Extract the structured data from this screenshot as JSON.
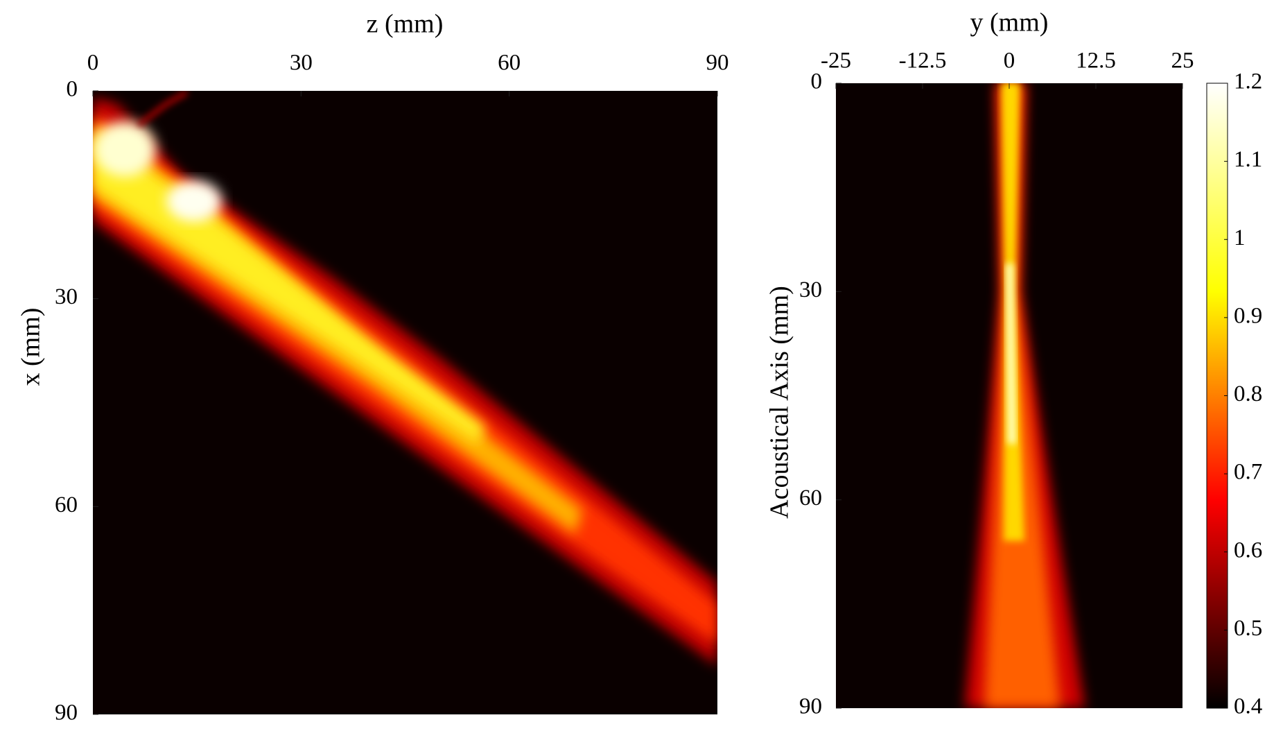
{
  "chart_data": [
    {
      "type": "heatmap",
      "x_label": "z (mm)",
      "y_label": "x (mm)",
      "xlim": [
        0,
        90
      ],
      "xticks": [
        0,
        30,
        60,
        90
      ],
      "ylim": [
        0,
        90
      ],
      "yticks": [
        0,
        30,
        60,
        90
      ],
      "colormap": [
        "#000000",
        "#ff0000",
        "#ffff00",
        "#ffffff"
      ]
    },
    {
      "type": "heatmap",
      "x_label": "y (mm)",
      "y_label": "Acoustical Axis (mm)",
      "xlim": [
        -25,
        25
      ],
      "xticks": [
        -25,
        -12.5,
        0,
        12.5,
        25
      ],
      "ylim": [
        0,
        90
      ],
      "yticks": [
        0,
        30,
        60,
        90
      ],
      "colormap": [
        "#000000",
        "#ff0000",
        "#ffff00",
        "#ffffff"
      ],
      "colorbar": {
        "lim": [
          0.4,
          1.2
        ],
        "ticks": [
          0.4,
          0.5,
          0.6,
          0.7,
          0.8,
          0.9,
          1,
          1.1,
          1.2
        ]
      }
    }
  ]
}
